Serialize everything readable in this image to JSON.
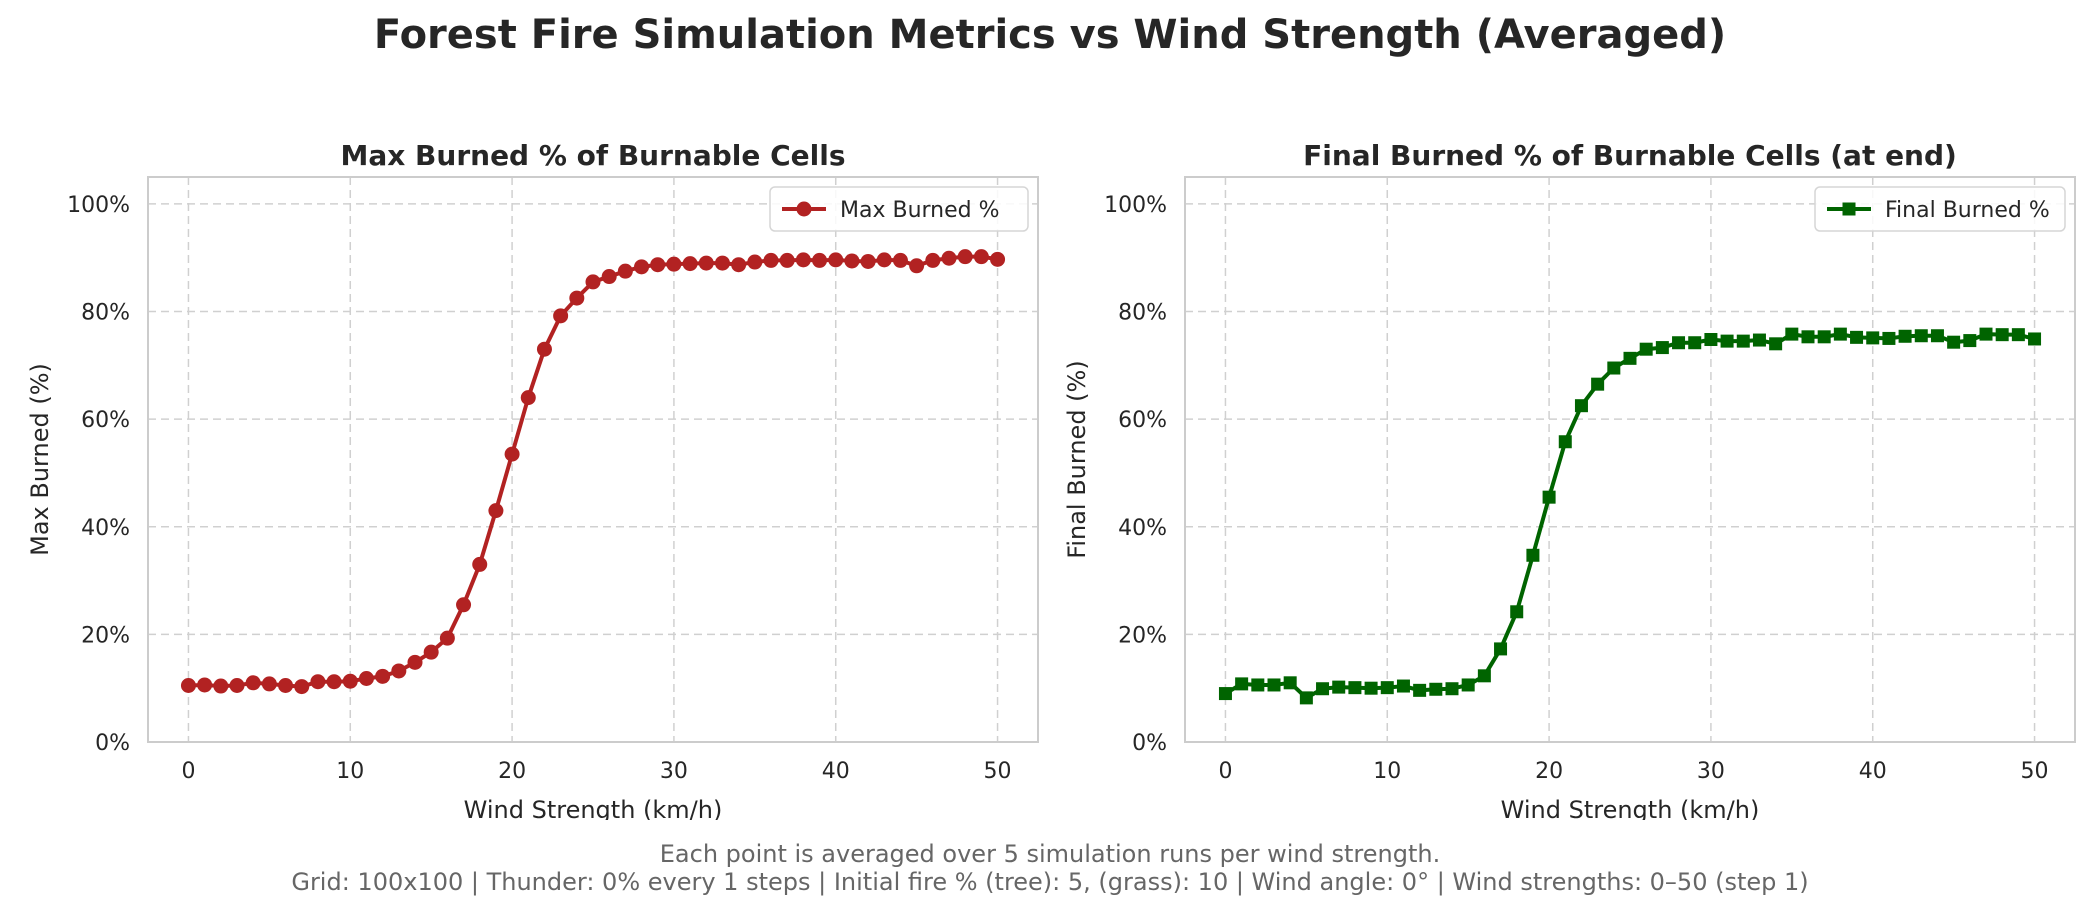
{
  "figure": {
    "suptitle": "Forest Fire Simulation Metrics vs Wind Strength (Averaged)",
    "footnote_line1": "Each point is averaged over 5 simulation runs per wind strength.",
    "footnote_line2": "Grid: 100x100 | Thunder: 0% every 1 steps | Initial fire % (tree): 5, (grass): 10 | Wind angle: 0° | Wind strengths: 0–50 (step 1)"
  },
  "chart_data": [
    {
      "type": "line",
      "title": "Max Burned % of Burnable Cells",
      "xlabel": "Wind Strength (km/h)",
      "ylabel": "Max Burned (%)",
      "xlim": [
        -2.5,
        52.5
      ],
      "ylim": [
        0,
        105
      ],
      "xticks": [
        0,
        10,
        20,
        30,
        40,
        50
      ],
      "yticks": [
        0,
        20,
        40,
        60,
        80,
        100
      ],
      "ytick_labels": [
        "0%",
        "20%",
        "40%",
        "60%",
        "80%",
        "100%"
      ],
      "grid": true,
      "legend_position": "top-right",
      "x": [
        0,
        1,
        2,
        3,
        4,
        5,
        6,
        7,
        8,
        9,
        10,
        11,
        12,
        13,
        14,
        15,
        16,
        17,
        18,
        19,
        20,
        21,
        22,
        23,
        24,
        25,
        26,
        27,
        28,
        29,
        30,
        31,
        32,
        33,
        34,
        35,
        36,
        37,
        38,
        39,
        40,
        41,
        42,
        43,
        44,
        45,
        46,
        47,
        48,
        49,
        50
      ],
      "series": [
        {
          "name": "Max Burned %",
          "color": "#b22222",
          "marker": "circle",
          "values": [
            10.5,
            10.6,
            10.4,
            10.5,
            11.0,
            10.8,
            10.5,
            10.3,
            11.2,
            11.2,
            11.3,
            11.8,
            12.2,
            13.2,
            14.8,
            16.7,
            19.3,
            25.5,
            33.0,
            43.0,
            53.5,
            64.0,
            73.0,
            79.2,
            82.5,
            85.5,
            86.5,
            87.5,
            88.3,
            88.7,
            88.8,
            88.9,
            89.0,
            89.0,
            88.7,
            89.2,
            89.5,
            89.5,
            89.6,
            89.5,
            89.6,
            89.4,
            89.3,
            89.6,
            89.5,
            88.5,
            89.5,
            89.9,
            90.2,
            90.2,
            89.7
          ]
        }
      ]
    },
    {
      "type": "line",
      "title": "Final Burned % of Burnable Cells (at end)",
      "xlabel": "Wind Strength (km/h)",
      "ylabel": "Final Burned (%)",
      "xlim": [
        -2.5,
        52.5
      ],
      "ylim": [
        0,
        105
      ],
      "xticks": [
        0,
        10,
        20,
        30,
        40,
        50
      ],
      "yticks": [
        0,
        20,
        40,
        60,
        80,
        100
      ],
      "ytick_labels": [
        "0%",
        "20%",
        "40%",
        "60%",
        "80%",
        "100%"
      ],
      "grid": true,
      "legend_position": "top-right",
      "x": [
        0,
        1,
        2,
        3,
        4,
        5,
        6,
        7,
        8,
        9,
        10,
        11,
        12,
        13,
        14,
        15,
        16,
        17,
        18,
        19,
        20,
        21,
        22,
        23,
        24,
        25,
        26,
        27,
        28,
        29,
        30,
        31,
        32,
        33,
        34,
        35,
        36,
        37,
        38,
        39,
        40,
        41,
        42,
        43,
        44,
        45,
        46,
        47,
        48,
        49,
        50
      ],
      "series": [
        {
          "name": "Final Burned %",
          "color": "#006400",
          "marker": "square",
          "values": [
            9.0,
            10.8,
            10.6,
            10.6,
            11.0,
            8.2,
            9.9,
            10.2,
            10.1,
            10.0,
            10.1,
            10.4,
            9.6,
            9.8,
            9.9,
            10.6,
            12.3,
            17.3,
            24.2,
            34.7,
            45.5,
            55.8,
            62.5,
            66.5,
            69.5,
            71.3,
            73.0,
            73.3,
            74.2,
            74.2,
            74.8,
            74.5,
            74.5,
            74.7,
            74.0,
            75.8,
            75.3,
            75.3,
            75.8,
            75.2,
            75.1,
            75.0,
            75.4,
            75.5,
            75.5,
            74.3,
            74.6,
            75.8,
            75.7,
            75.7,
            74.9
          ]
        }
      ]
    }
  ]
}
